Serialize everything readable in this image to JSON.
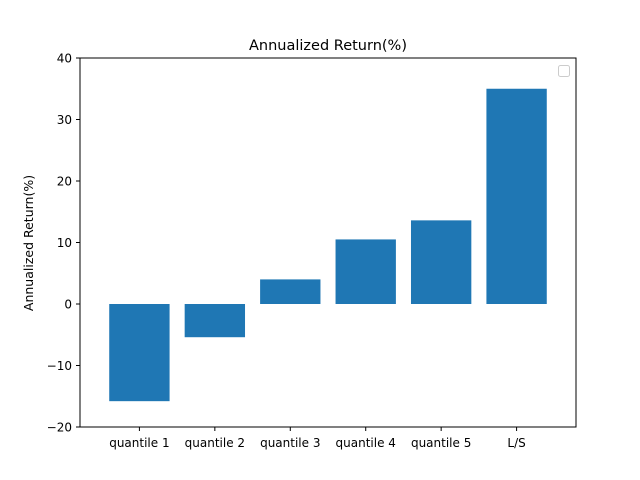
{
  "chart_data": {
    "type": "bar",
    "title": "Annualized Return(%)",
    "xlabel": "",
    "ylabel": "Annualized Return(%)",
    "categories": [
      "quantile 1",
      "quantile 2",
      "quantile 3",
      "quantile 4",
      "quantile 5",
      "L/S"
    ],
    "values": [
      -15.8,
      -5.4,
      4.0,
      10.5,
      13.6,
      35.0
    ],
    "ylim": [
      -20,
      40
    ],
    "yticks": [
      -20,
      -10,
      0,
      10,
      20,
      30,
      40
    ],
    "ytick_labels": [
      "−20",
      "−10",
      "0",
      "10",
      "20",
      "30",
      "40"
    ],
    "bar_color": "#1f77b4",
    "grid": false,
    "legend": {
      "placement": "top-right",
      "entries": []
    }
  }
}
